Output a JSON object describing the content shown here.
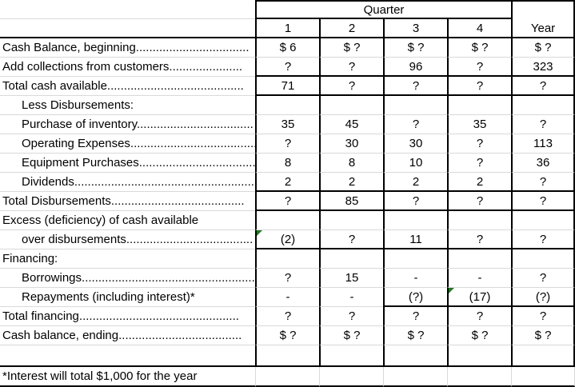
{
  "table": {
    "header": {
      "quarter": "Quarter",
      "quarters": [
        "1",
        "2",
        "3",
        "4"
      ],
      "year": "Year"
    },
    "rows": [
      {
        "label": "Cash Balance, beginning..................................",
        "values": [
          "$ 6",
          "$ ?",
          "$ ?",
          "$ ?",
          "$ ?"
        ]
      },
      {
        "label": "Add collections from customers......................",
        "values": [
          "?",
          "?",
          "96",
          "?",
          "323"
        ]
      },
      {
        "label": "Total cash available.........................................",
        "values": [
          "71",
          "?",
          "?",
          "?",
          "?"
        ]
      },
      {
        "label": "Less Disbursements:",
        "values": [
          "",
          "",
          "",
          "",
          ""
        ]
      },
      {
        "label": "Purchase of inventory...................................",
        "values": [
          "35",
          "45",
          "?",
          "35",
          "?"
        ]
      },
      {
        "label": "Operating Expenses......................................",
        "values": [
          "?",
          "30",
          "30",
          "?",
          "113"
        ]
      },
      {
        "label": "Equipment Purchases...................................",
        "values": [
          "8",
          "8",
          "10",
          "?",
          "36"
        ]
      },
      {
        "label": "Dividends.......................................................",
        "values": [
          "2",
          "2",
          "2",
          "2",
          "?"
        ]
      },
      {
        "label": "Total Disbursements........................................",
        "values": [
          "?",
          "85",
          "?",
          "?",
          "?"
        ]
      },
      {
        "label": "Excess (deficiency) of cash available",
        "values": [
          "",
          "",
          "",
          "",
          ""
        ]
      },
      {
        "label": "over disbursements......................................",
        "values": [
          "(2)",
          "?",
          "11",
          "?",
          "?"
        ]
      },
      {
        "label": "Financing:",
        "values": [
          "",
          "",
          "",
          "",
          ""
        ]
      },
      {
        "label": "Borrowings.....................................................",
        "values": [
          "?",
          "15",
          "-",
          "-",
          "?"
        ]
      },
      {
        "label": "Repayments (including interest)*",
        "values": [
          "-",
          "-",
          "(?)",
          "(17)",
          "(?)"
        ]
      },
      {
        "label": "Total financing................................................",
        "values": [
          "?",
          "?",
          "?",
          "?",
          "?"
        ]
      },
      {
        "label": "Cash balance, ending.....................................",
        "values": [
          "$ ?",
          "$ ?",
          "$ ?",
          "$ ?",
          "$ ?"
        ]
      }
    ],
    "footnote": "*Interest will total $1,000 for the year",
    "error_flags": [
      {
        "row": "over disbursements",
        "column": "Quarter 1",
        "cell_value": "(2)"
      },
      {
        "row": "Repayments (including interest)*",
        "column": "Quarter 4",
        "cell_value": "(17)"
      }
    ]
  },
  "colors": {
    "border_black": "#000000",
    "gridline": "#d9d9d9",
    "flag_green": "#1e7b1e",
    "background": "#ffffff"
  }
}
